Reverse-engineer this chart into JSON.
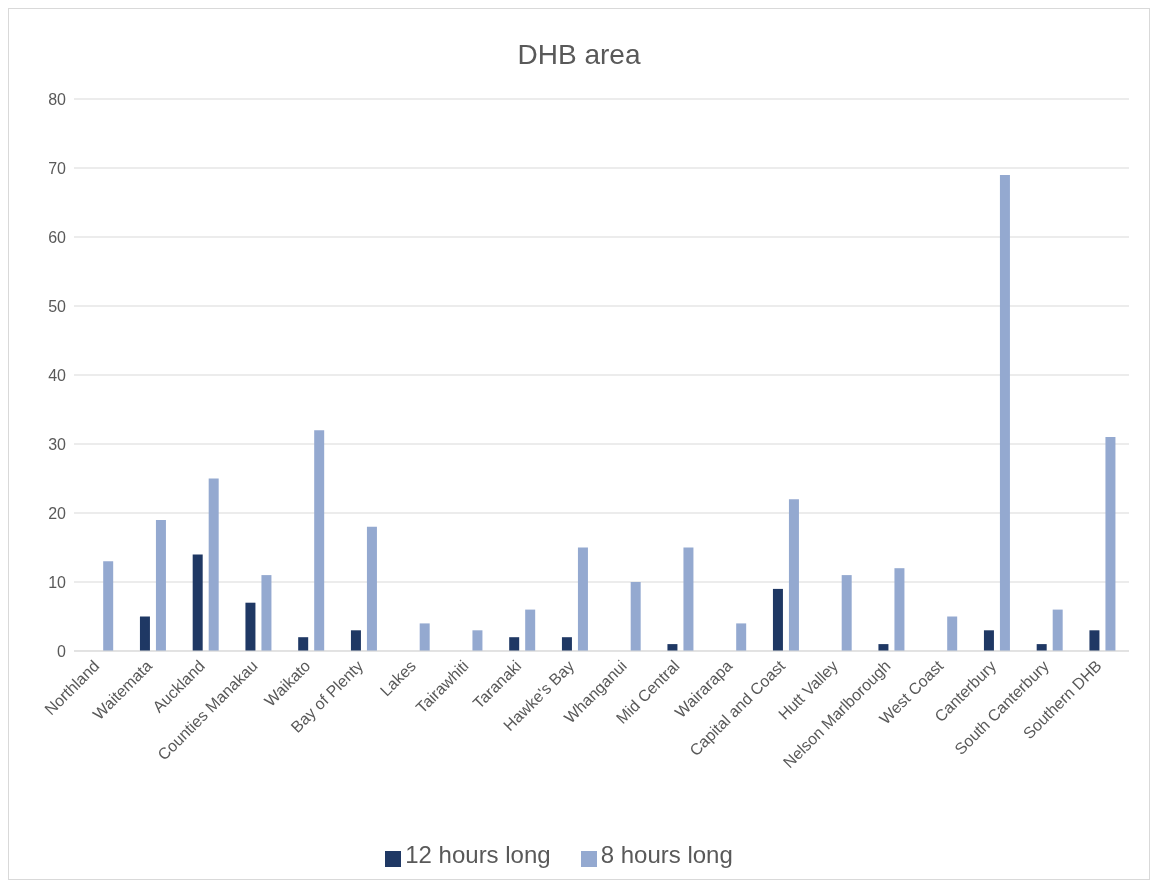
{
  "chart_data": {
    "type": "bar",
    "title": "DHB area",
    "categories": [
      "Northland",
      "Waitemata",
      "Auckland",
      "Counties Manakau",
      "Waikato",
      "Bay of Plenty",
      "Lakes",
      "Tairawhiti",
      "Taranaki",
      "Hawke's Bay",
      "Whanganui",
      "Mid Central",
      "Wairarapa",
      "Capital and Coast",
      "Hutt Valley",
      "Nelson Marlborough",
      "West Coast",
      "Canterbury",
      "South Canterbury",
      "Southern DHB"
    ],
    "series": [
      {
        "name": "12 hours long",
        "color": "#1f3864",
        "values": [
          0,
          5,
          14,
          7,
          2,
          3,
          0,
          0,
          2,
          2,
          0,
          1,
          0,
          9,
          0,
          1,
          0,
          3,
          1,
          3
        ]
      },
      {
        "name": "8 hours long",
        "color": "#94a9d0",
        "values": [
          13,
          19,
          25,
          11,
          32,
          18,
          4,
          3,
          6,
          15,
          10,
          15,
          4,
          22,
          11,
          12,
          5,
          69,
          6,
          31
        ]
      }
    ],
    "ylim": [
      0,
      80
    ],
    "yticks": [
      0,
      10,
      20,
      30,
      40,
      50,
      60,
      70,
      80
    ],
    "grid": "y",
    "legend": "bottom"
  }
}
